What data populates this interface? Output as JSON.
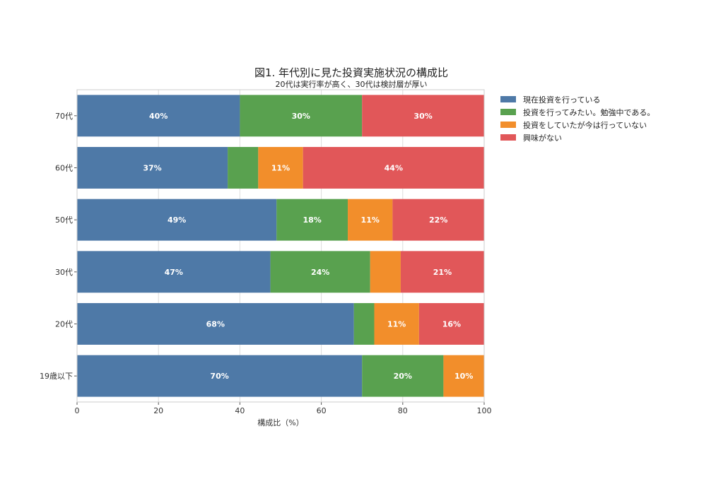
{
  "chart_data": {
    "type": "bar",
    "orientation": "horizontal",
    "stacked": true,
    "title": "図1. 年代別に見た投資実施状況の構成比",
    "subtitle": "20代は実行率が高く、30代は検討層が厚い",
    "xlabel": "構成比（%）",
    "ylabel": "",
    "xlim": [
      0,
      100
    ],
    "xticks": [
      "0",
      "20",
      "40",
      "60",
      "80",
      "100"
    ],
    "grid": true,
    "legend_position": "right",
    "categories": [
      "70代",
      "60代",
      "50代",
      "30代",
      "20代",
      "19歳以下"
    ],
    "series": [
      {
        "name": "現在投資を行っている",
        "color": "#4e79a7",
        "values": [
          40,
          37,
          49,
          47.5,
          68,
          70
        ],
        "labels": [
          "40%",
          "37%",
          "49%",
          "47%",
          "68%",
          "70%"
        ]
      },
      {
        "name": "投資を行ってみたい。勉強中である。",
        "color": "#59a14f",
        "values": [
          30,
          7.5,
          17.5,
          24.5,
          5,
          20
        ],
        "labels": [
          "30%",
          "",
          "18%",
          "24%",
          "",
          "20%"
        ]
      },
      {
        "name": "投資をしていたが今は行っていない",
        "color": "#f28e2b",
        "values": [
          0,
          11,
          11,
          7.5,
          11,
          10
        ],
        "labels": [
          "",
          "11%",
          "11%",
          "",
          "11%",
          "10%"
        ]
      },
      {
        "name": "興味がない",
        "color": "#e15759",
        "values": [
          30,
          44.5,
          22.5,
          20.5,
          16,
          0
        ],
        "labels": [
          "30%",
          "44%",
          "22%",
          "21%",
          "16%",
          ""
        ]
      }
    ]
  }
}
